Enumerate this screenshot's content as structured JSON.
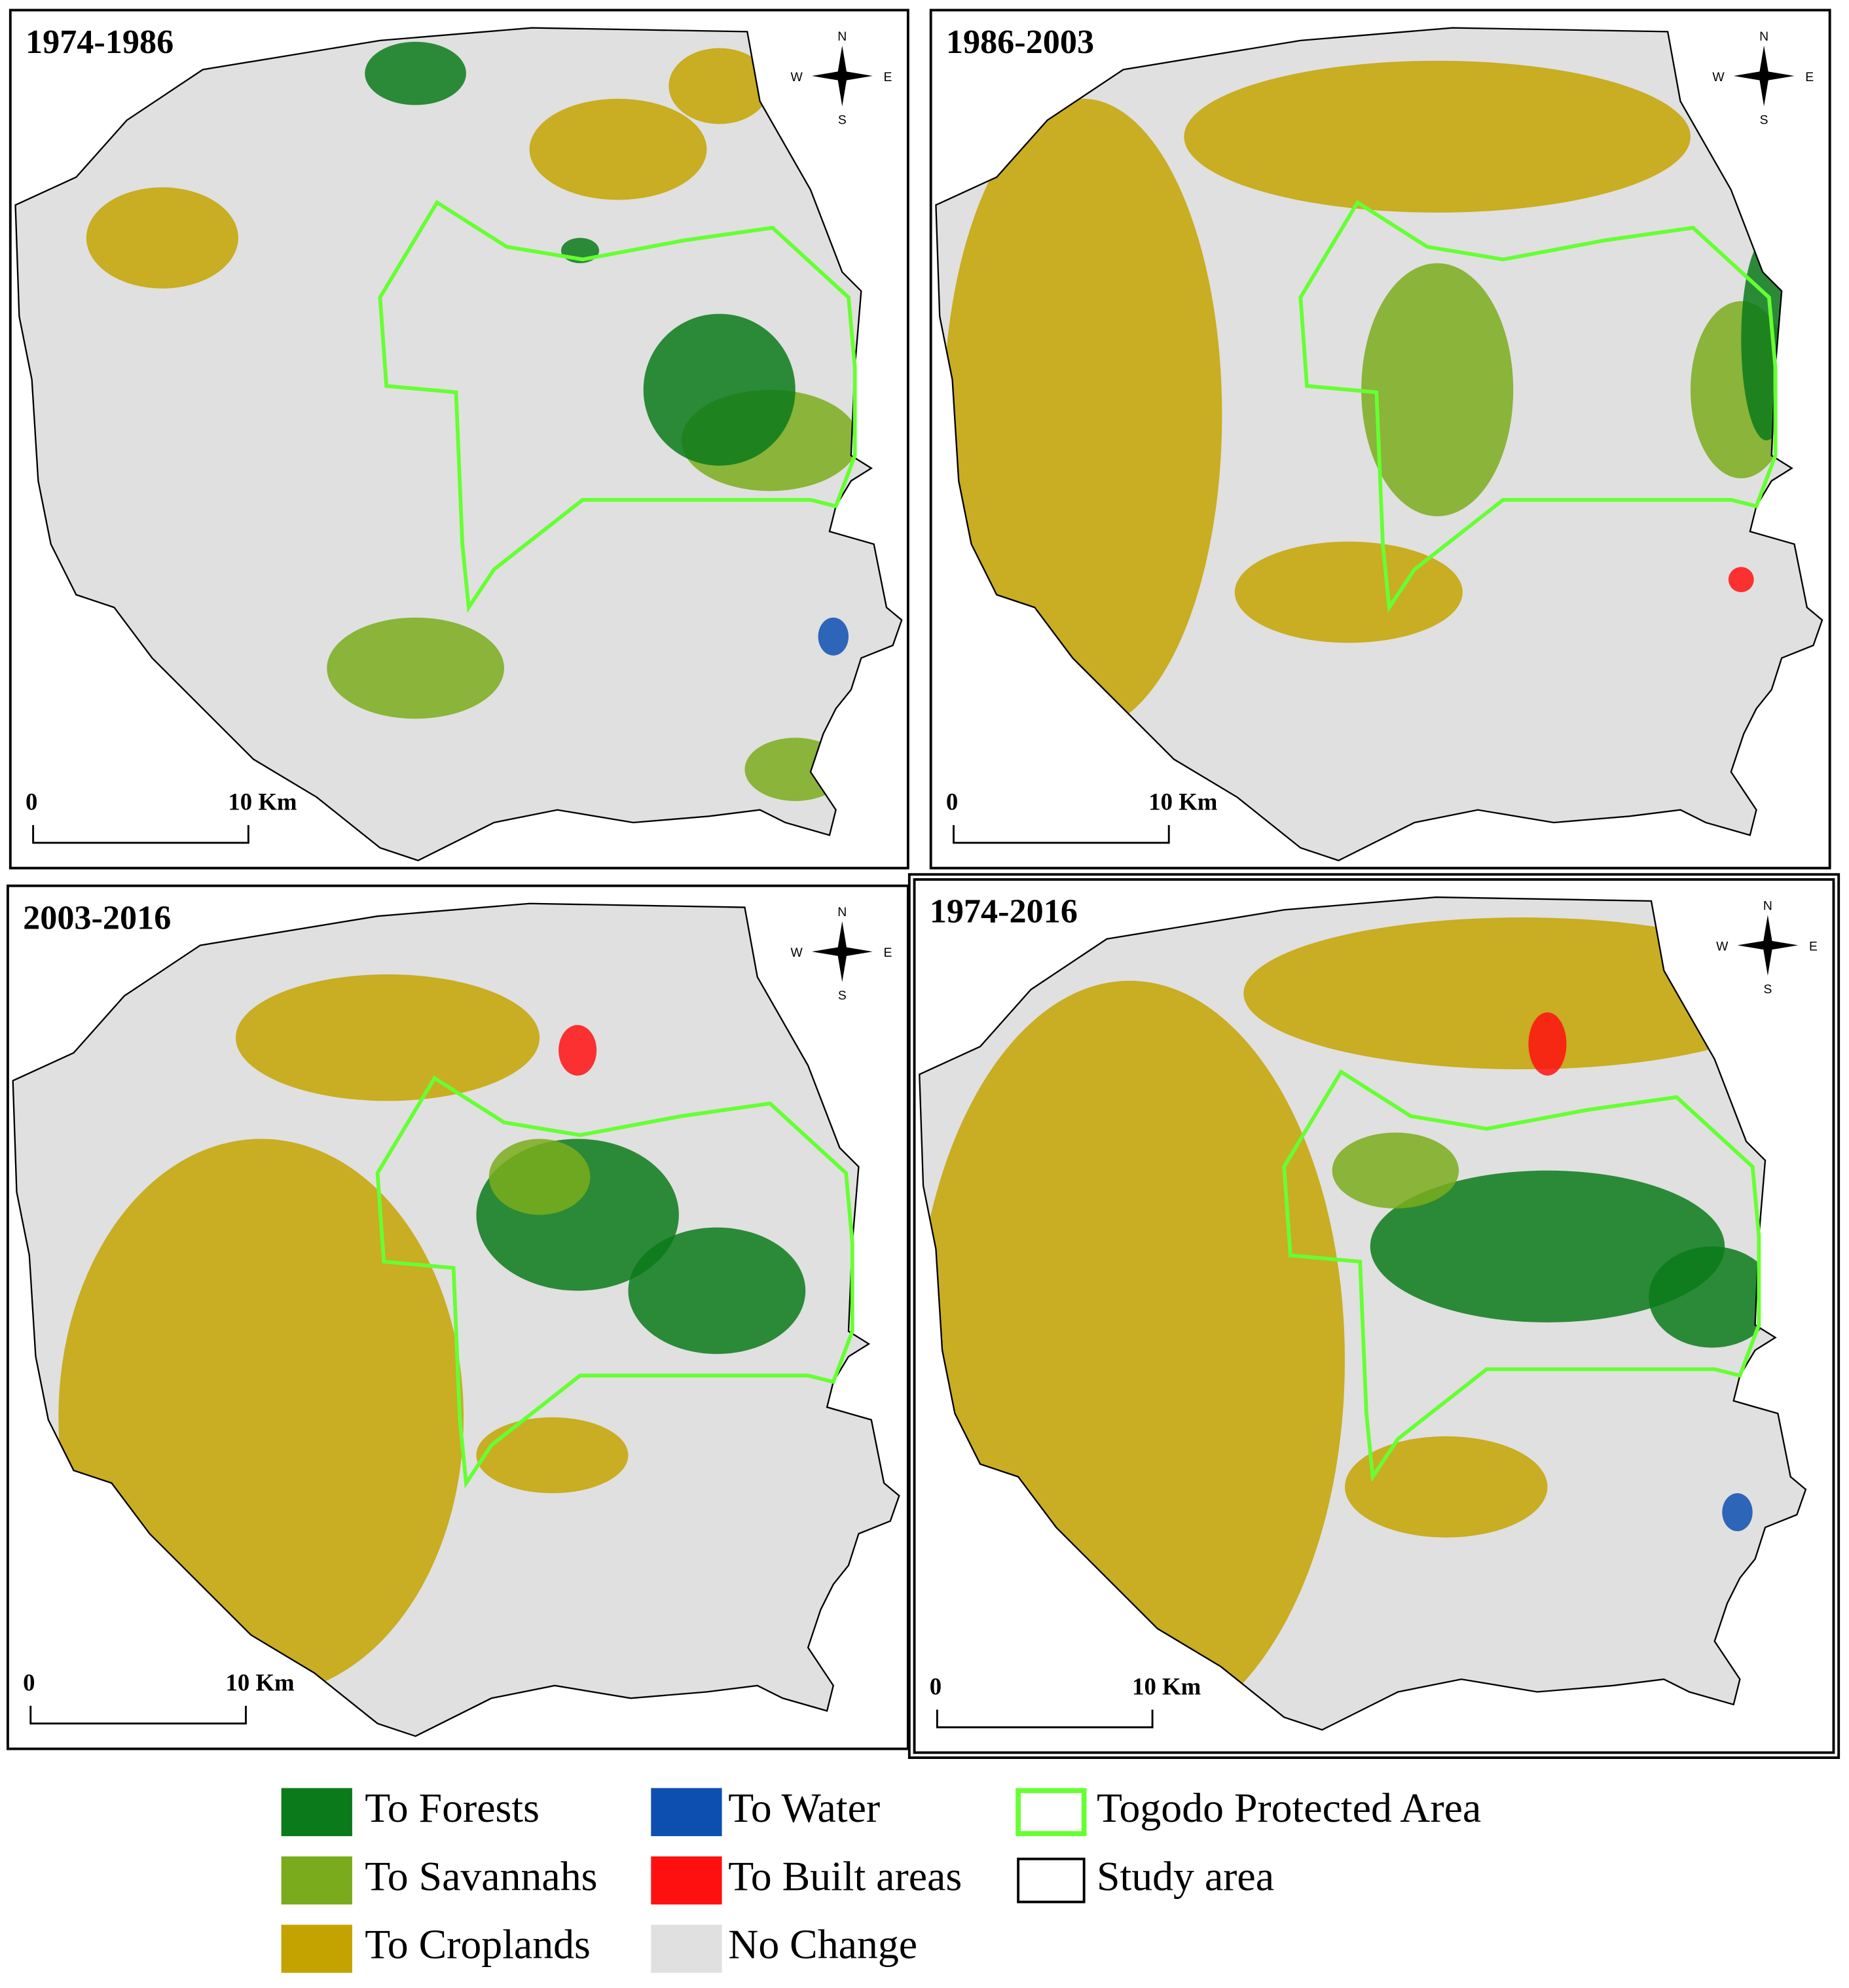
{
  "panels": [
    {
      "title": "1974-1986",
      "scale": {
        "start": "0",
        "end": "10 Km"
      }
    },
    {
      "title": "1986-2003",
      "scale": {
        "start": "0",
        "end": "10 Km"
      }
    },
    {
      "title": "2003-2016",
      "scale": {
        "start": "0",
        "end": "10 Km"
      }
    },
    {
      "title": "1974-2016",
      "scale": {
        "start": "0",
        "end": "10 Km"
      }
    }
  ],
  "compass": {
    "n": "N",
    "s": "S",
    "w": "W",
    "e": "E"
  },
  "legend": [
    {
      "label": "To Forests",
      "color": "#0b7a1a"
    },
    {
      "label": "To Savannahs",
      "color": "#7aab1c"
    },
    {
      "label": "To Croplands",
      "color": "#c4a300"
    },
    {
      "label": "To Water",
      "color": "#0d4fb0"
    },
    {
      "label": "To Built areas",
      "color": "#ff1010"
    },
    {
      "label": "No Change",
      "color": "#e0e0e0"
    },
    {
      "label": "Togodo Protected Area",
      "color": "#66ff33",
      "swatch": "outline"
    },
    {
      "label": "Study area",
      "color": "#000000",
      "swatch": "outline"
    }
  ]
}
